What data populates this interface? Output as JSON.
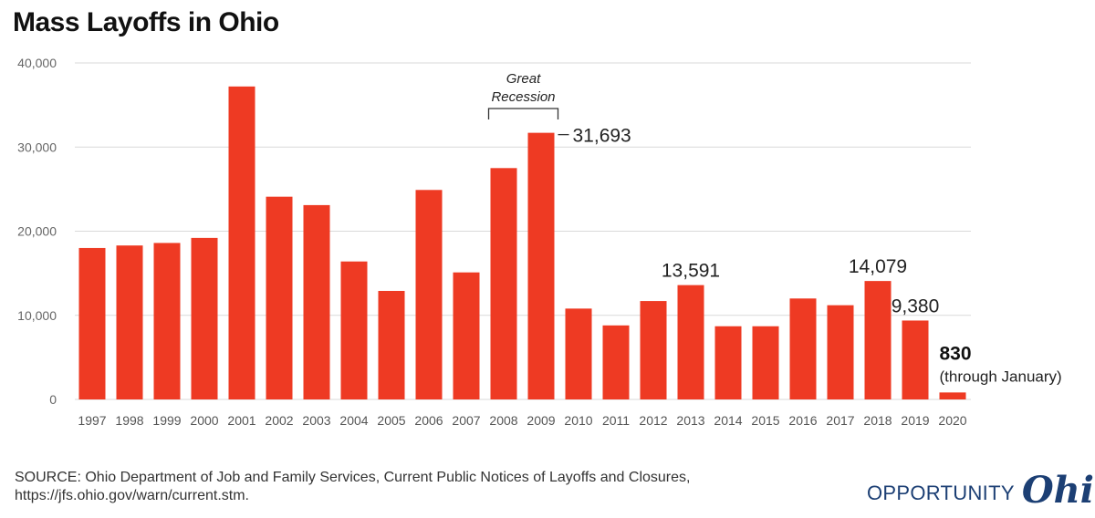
{
  "title": "Mass Layoffs in Ohio",
  "chart_data": {
    "type": "bar",
    "title": "Mass Layoffs in Ohio",
    "categories": [
      "1997",
      "1998",
      "1999",
      "2000",
      "2001",
      "2002",
      "2003",
      "2004",
      "2005",
      "2006",
      "2007",
      "2008",
      "2009",
      "2010",
      "2011",
      "2012",
      "2013",
      "2014",
      "2015",
      "2016",
      "2017",
      "2018",
      "2019",
      "2020"
    ],
    "values": [
      18000,
      18300,
      18600,
      19200,
      37200,
      24100,
      23100,
      16400,
      12900,
      24900,
      15100,
      27500,
      31693,
      10800,
      8800,
      11700,
      13591,
      8700,
      8700,
      12000,
      11200,
      14079,
      9380,
      830
    ],
    "ylim": [
      0,
      40000
    ],
    "yticks": [
      0,
      10000,
      20000,
      30000,
      40000
    ],
    "ytick_labels": [
      "0",
      "10,000",
      "20,000",
      "30,000",
      "40,000"
    ],
    "grid": true,
    "bar_color": "#ee3a23",
    "data_labels": [
      {
        "category": "2009",
        "text": "31,693"
      },
      {
        "category": "2013",
        "text": "13,591"
      },
      {
        "category": "2018",
        "text": "14,079"
      },
      {
        "category": "2019",
        "text": "9,380"
      },
      {
        "category": "2020",
        "text": "830",
        "subtext": "(through January)"
      }
    ],
    "annotation": {
      "lines": [
        "Great",
        "Recession"
      ],
      "from": "2008",
      "to": "2009"
    }
  },
  "source": {
    "line1": "SOURCE: Ohio Department of Job and Family Services, Current Public Notices of Layoffs and Closures,",
    "line2": "https://jfs.ohio.gov/warn/current.stm."
  },
  "logo": {
    "text": "OPPORTUNITY",
    "script": "Ohio",
    "color": "#1c3f74"
  }
}
